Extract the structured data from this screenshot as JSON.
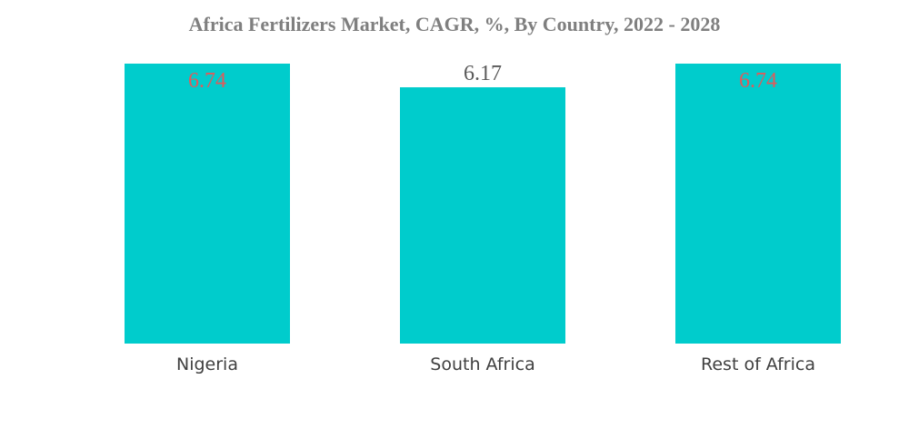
{
  "colors": {
    "bar": "#00cccc",
    "title": "#7f7f7f",
    "label_inside": "#e05a5a",
    "label_outside": "#595959",
    "category": "#404040"
  },
  "chart_data": {
    "type": "bar",
    "title": "Africa Fertilizers Market, CAGR, %, By Country, 2022 - 2028",
    "xlabel": "",
    "ylabel": "",
    "categories": [
      "Nigeria",
      "South Africa",
      "Rest of Africa"
    ],
    "values": [
      6.74,
      6.17,
      6.74
    ],
    "value_labels": [
      "6.74",
      "6.17",
      "6.74"
    ],
    "ylim": [
      0,
      6.74
    ],
    "grid": false,
    "legend": "none"
  }
}
